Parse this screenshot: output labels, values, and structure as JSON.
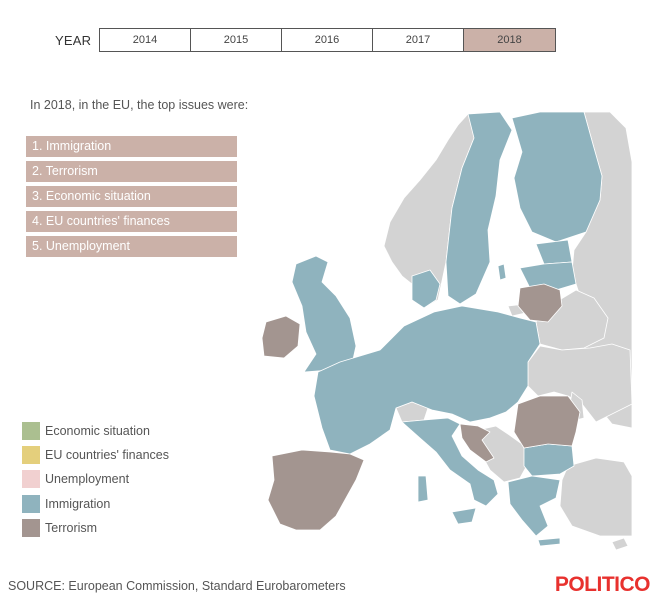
{
  "year_selector": {
    "label": "YEAR",
    "years": [
      {
        "label": "2014",
        "active": false
      },
      {
        "label": "2015",
        "active": false
      },
      {
        "label": "2016",
        "active": false
      },
      {
        "label": "2017",
        "active": false
      },
      {
        "label": "2018",
        "active": true
      }
    ]
  },
  "intro": "In 2018, in the EU, the top issues were:",
  "top_issues": [
    "1. Immigration",
    "2. Terrorism",
    "3. Economic situation",
    "4. EU countries' finances",
    "5. Unemployment"
  ],
  "legend": [
    {
      "label": "Economic situation",
      "color": "#abbf90"
    },
    {
      "label": "EU countries' finances",
      "color": "#e4cf7c"
    },
    {
      "label": "Unemployment",
      "color": "#f1d0d0"
    },
    {
      "label": "Immigration",
      "color": "#8fb3be"
    },
    {
      "label": "Terrorism",
      "color": "#a39590"
    }
  ],
  "colors": {
    "accent": "#cbb1a8",
    "immigration": "#8fb3be",
    "terrorism": "#a39590",
    "non_eu": "#d3d3d3",
    "brand": "#e8312e"
  },
  "source": "SOURCE: European Commission, Standard Eurobarometers",
  "brand": "POLITICO"
}
